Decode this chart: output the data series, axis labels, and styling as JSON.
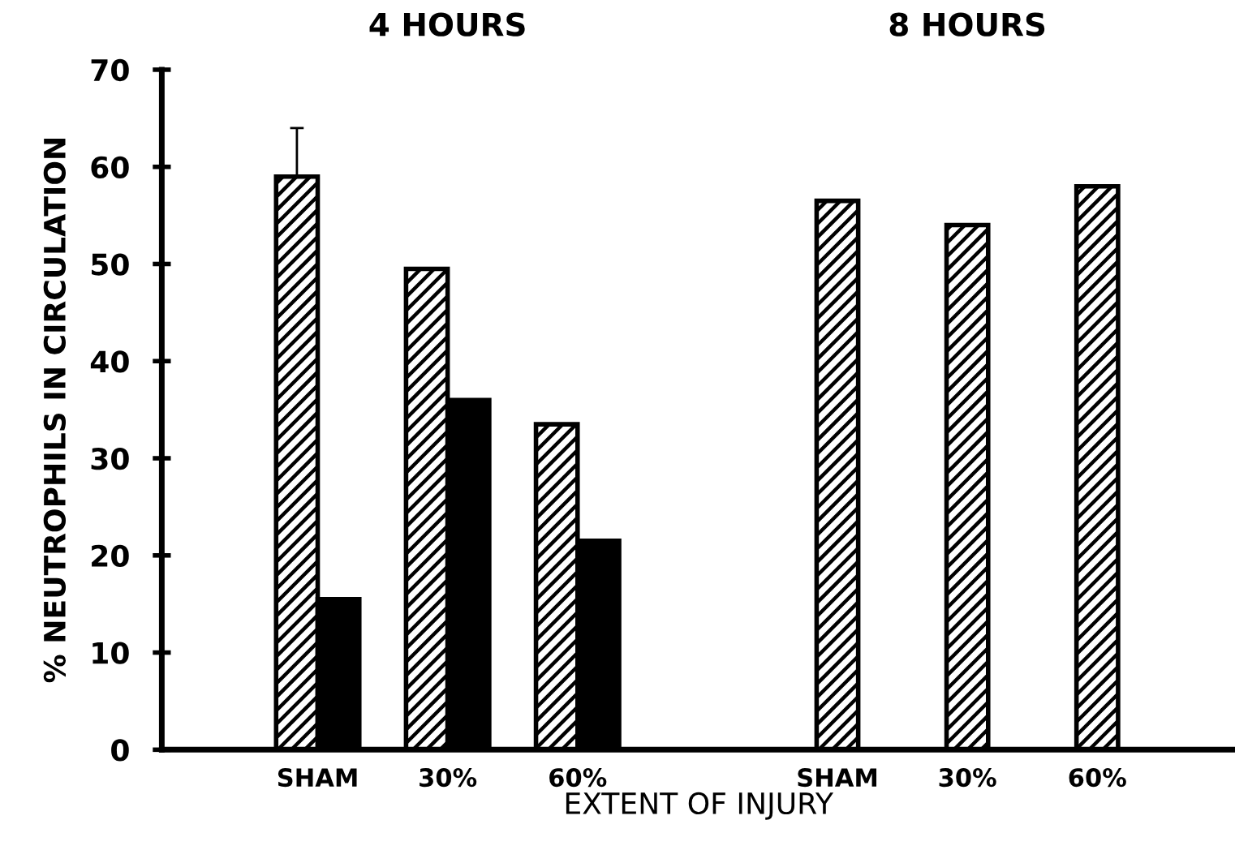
{
  "chart_data": {
    "type": "bar",
    "annotations": [
      "4 HOURS",
      "8 HOURS"
    ],
    "xlabel": "EXTENT OF INJURY",
    "ylabel": "% NEUTROPHILS IN CIRCULATION",
    "categories": [
      "SHAM",
      "30%",
      "60%",
      null,
      "SHAM",
      "30%",
      "60%"
    ],
    "series": [
      {
        "color": "#000000",
        "values": [
          59,
          49.5,
          33.5,
          null,
          56.5,
          54,
          58
        ],
        "errors": [
          [
            59,
            64
          ],
          null,
          null,
          null,
          null,
          null,
          null
        ]
      },
      {
        "color": "#000000",
        "values": [
          15.5,
          36,
          21.5,
          null,
          null,
          null,
          null
        ]
      }
    ],
    "ylim": [
      0,
      70
    ],
    "yticks": [
      0,
      10,
      20,
      30,
      40,
      50,
      60,
      70
    ],
    "grid": false,
    "legend": false
  }
}
